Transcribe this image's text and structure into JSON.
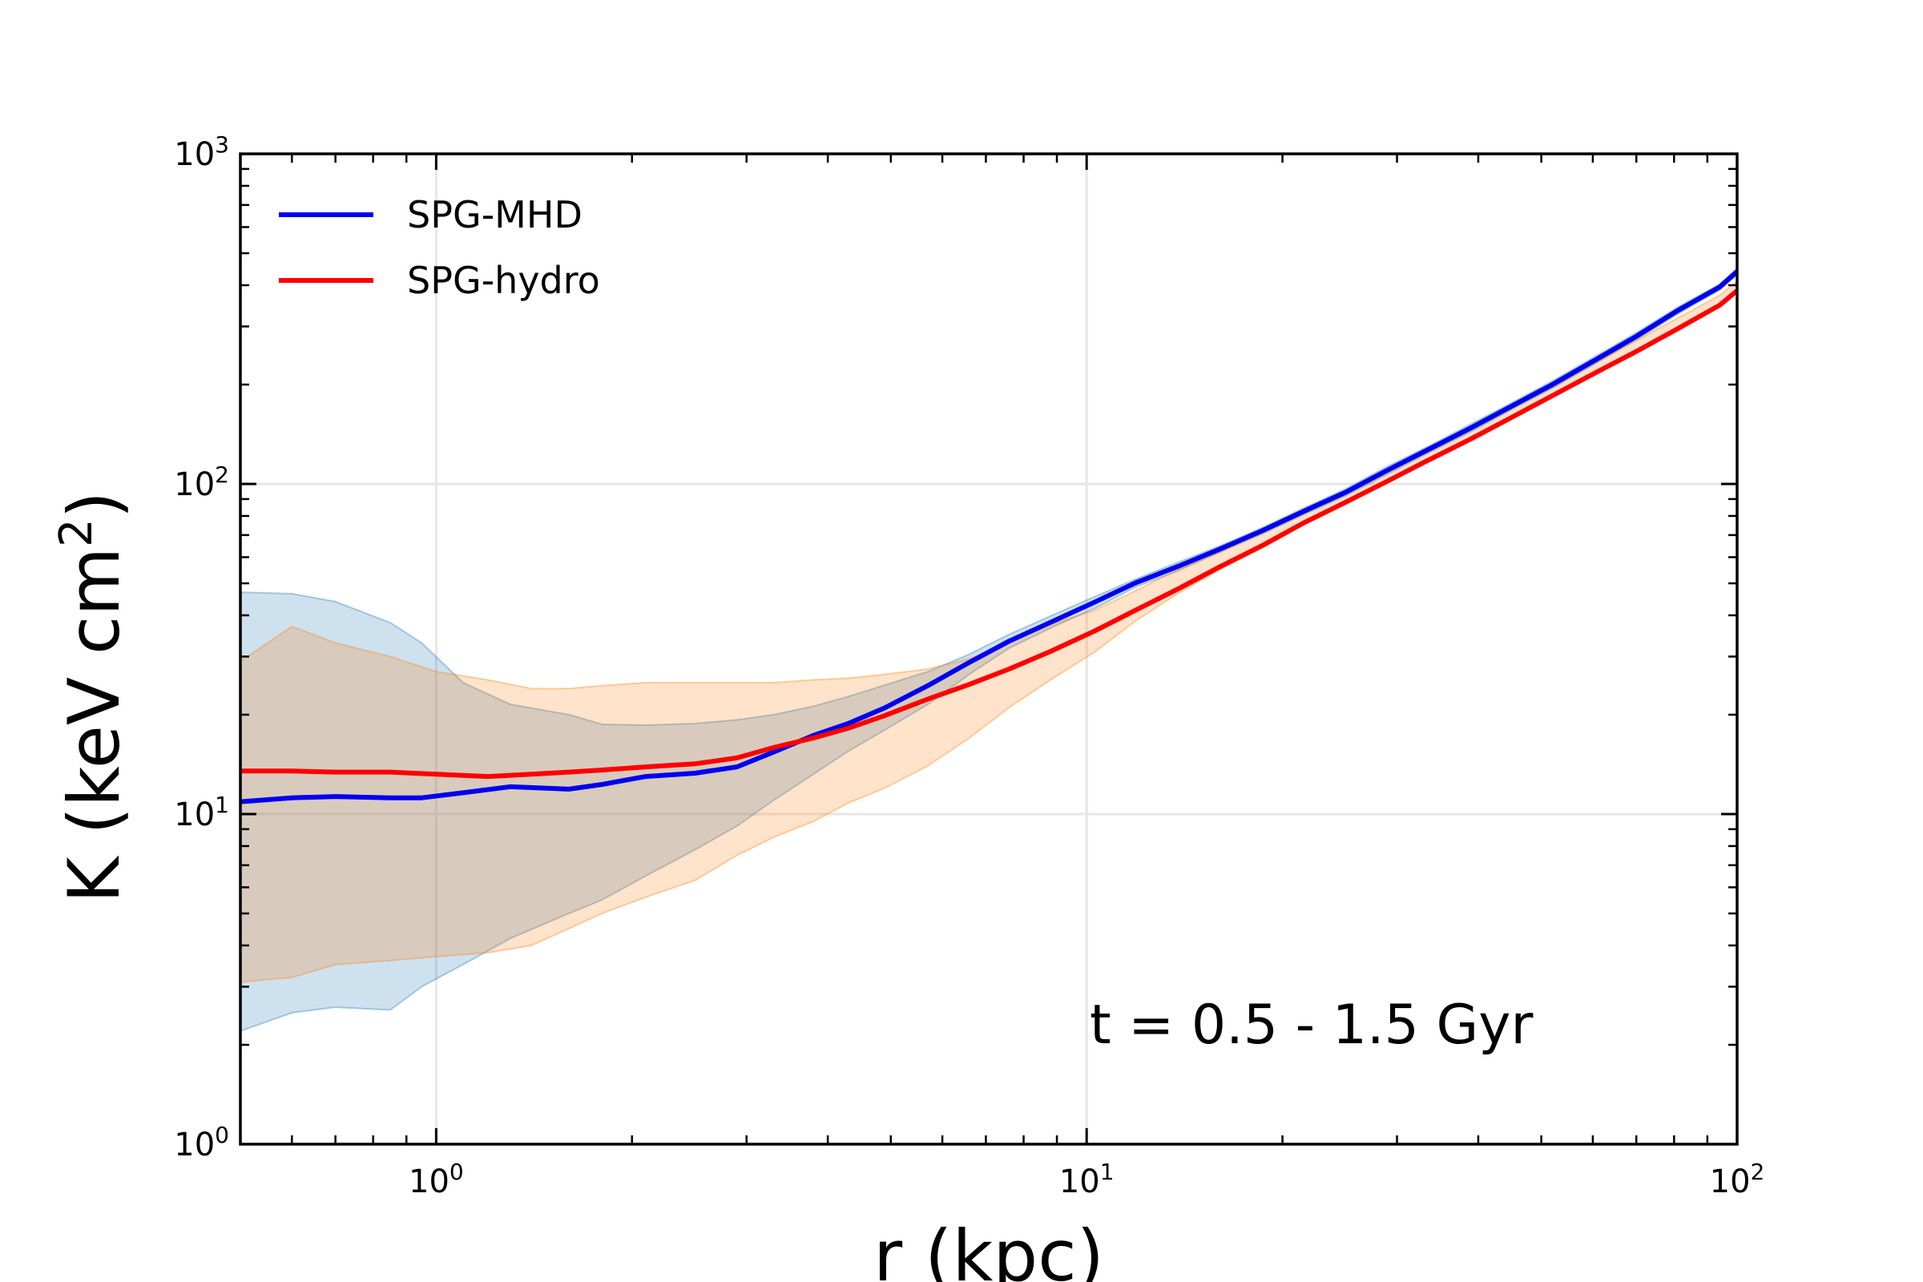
{
  "chart_data": {
    "type": "line",
    "xscale": "log",
    "yscale": "log",
    "xlim": [
      0.5,
      100
    ],
    "ylim": [
      1,
      1000
    ],
    "xlabel": "r (kpc)",
    "ylabel_main": "K (keV cm",
    "ylabel_exp": "2",
    "ylabel_close": ")",
    "grid": true,
    "legend_position": "upper-left",
    "annotation": "t = 0.5 - 1.5 Gyr",
    "x_ticks": [
      {
        "value": 1,
        "base": "10",
        "exp": "0"
      },
      {
        "value": 10,
        "base": "10",
        "exp": "1"
      },
      {
        "value": 100,
        "base": "10",
        "exp": "2"
      }
    ],
    "y_ticks": [
      {
        "value": 1,
        "base": "10",
        "exp": "0"
      },
      {
        "value": 10,
        "base": "10",
        "exp": "1"
      },
      {
        "value": 100,
        "base": "10",
        "exp": "2"
      },
      {
        "value": 1000,
        "base": "10",
        "exp": "3"
      }
    ],
    "series": [
      {
        "name": "SPG-MHD",
        "color": "#0000ee",
        "x": [
          0.5,
          0.6,
          0.7,
          0.85,
          0.95,
          1.1,
          1.3,
          1.6,
          1.8,
          2.1,
          2.5,
          2.9,
          3.3,
          3.8,
          4.3,
          4.9,
          5.7,
          6.6,
          7.6,
          8.8,
          10.3,
          11.9,
          13.8,
          16,
          18.6,
          21.5,
          25,
          29,
          33.5,
          39,
          45,
          52,
          60,
          70,
          81,
          94,
          100
        ],
        "y": [
          10.9,
          11.2,
          11.3,
          11.2,
          11.2,
          11.6,
          12.1,
          11.9,
          12.3,
          13.0,
          13.3,
          13.9,
          15.4,
          17.3,
          18.8,
          21.0,
          24.5,
          28.8,
          33.4,
          38.1,
          43.9,
          50.2,
          56.2,
          63.4,
          72.1,
          82.4,
          94.3,
          110,
          127,
          148,
          172,
          200,
          235,
          280,
          335,
          395,
          440
        ]
      },
      {
        "name": "SPG-hydro",
        "color": "#ff0000",
        "x": [
          0.5,
          0.6,
          0.7,
          0.85,
          1.0,
          1.2,
          1.4,
          1.6,
          1.8,
          2.1,
          2.5,
          2.9,
          3.3,
          3.8,
          4.3,
          4.9,
          5.7,
          6.6,
          7.6,
          8.8,
          10.3,
          11.9,
          13.8,
          16,
          18.6,
          21.5,
          25,
          29,
          33.5,
          39,
          45,
          52,
          60,
          70,
          81,
          94,
          100
        ],
        "y": [
          13.5,
          13.5,
          13.4,
          13.4,
          13.2,
          13.0,
          13.2,
          13.4,
          13.6,
          13.9,
          14.2,
          14.8,
          15.9,
          17.0,
          18.2,
          19.9,
          22.3,
          24.7,
          27.5,
          31.1,
          35.9,
          41.5,
          48.0,
          56.0,
          65.0,
          76.0,
          88.0,
          102,
          118,
          137,
          159,
          185,
          215,
          252,
          295,
          348,
          385
        ]
      }
    ],
    "bands": [
      {
        "name": "SPG-MHD range",
        "color": "#1f77b4",
        "opacity": 0.22,
        "x": [
          0.5,
          0.6,
          0.7,
          0.85,
          0.95,
          1.1,
          1.3,
          1.6,
          1.8,
          2.1,
          2.5,
          2.9,
          3.3,
          3.8,
          4.3,
          4.9,
          5.7,
          6.6,
          7.6,
          8.8,
          10.3,
          11.9,
          13.8,
          16,
          18.6,
          21.5,
          25,
          29,
          33.5,
          39,
          45,
          52,
          60,
          70,
          81,
          94,
          100
        ],
        "y_low": [
          2.2,
          2.5,
          2.6,
          2.55,
          3.0,
          3.5,
          4.2,
          5.0,
          5.5,
          6.5,
          7.8,
          9.2,
          11.0,
          13.2,
          15.5,
          18.0,
          21.5,
          26.5,
          31.8,
          36.6,
          42.0,
          48.8,
          54.5,
          62.0,
          70.5,
          80.5,
          92.0,
          107,
          124,
          144,
          168,
          195,
          229,
          273,
          327,
          387,
          430
        ],
        "y_high": [
          47,
          46.5,
          44,
          38,
          33,
          25,
          21.5,
          20,
          18.7,
          18.6,
          18.8,
          19.3,
          20.0,
          21.2,
          22.7,
          24.6,
          27.0,
          30.5,
          35.0,
          39.8,
          45.6,
          51.5,
          57.8,
          64.8,
          73.6,
          84.3,
          96.5,
          113,
          130,
          152,
          176,
          205,
          241,
          287,
          343,
          403,
          450
        ]
      },
      {
        "name": "SPG-hydro range",
        "color": "#ff7f0e",
        "opacity": 0.22,
        "x": [
          0.5,
          0.6,
          0.7,
          0.85,
          1.0,
          1.2,
          1.4,
          1.6,
          1.8,
          2.1,
          2.5,
          2.9,
          3.3,
          3.8,
          4.3,
          4.9,
          5.7,
          6.6,
          7.6,
          8.8,
          10.3,
          11.9,
          13.8,
          16,
          18.6,
          21.5,
          25,
          29,
          33.5,
          39,
          45,
          52,
          60,
          70,
          81,
          94,
          100
        ],
        "y_low": [
          3.1,
          3.2,
          3.5,
          3.6,
          3.7,
          3.8,
          4.0,
          4.5,
          5.0,
          5.6,
          6.3,
          7.5,
          8.5,
          9.5,
          10.8,
          12.0,
          14.0,
          17.0,
          21.0,
          25.5,
          31.0,
          38.5,
          46.5,
          55.0,
          64.0,
          75.0,
          87.0,
          101,
          117,
          136,
          158,
          184,
          214,
          251,
          294,
          347,
          383
        ],
        "y_high": [
          29,
          37,
          33,
          30,
          27,
          25.5,
          24,
          24,
          24.5,
          25,
          25,
          25,
          25,
          25.5,
          25.8,
          26.5,
          27.5,
          29.5,
          33,
          37.5,
          41.5,
          47.5,
          55,
          62,
          72,
          82,
          95,
          111,
          128,
          149,
          172,
          200,
          232,
          272,
          318,
          373,
          412
        ]
      }
    ]
  }
}
